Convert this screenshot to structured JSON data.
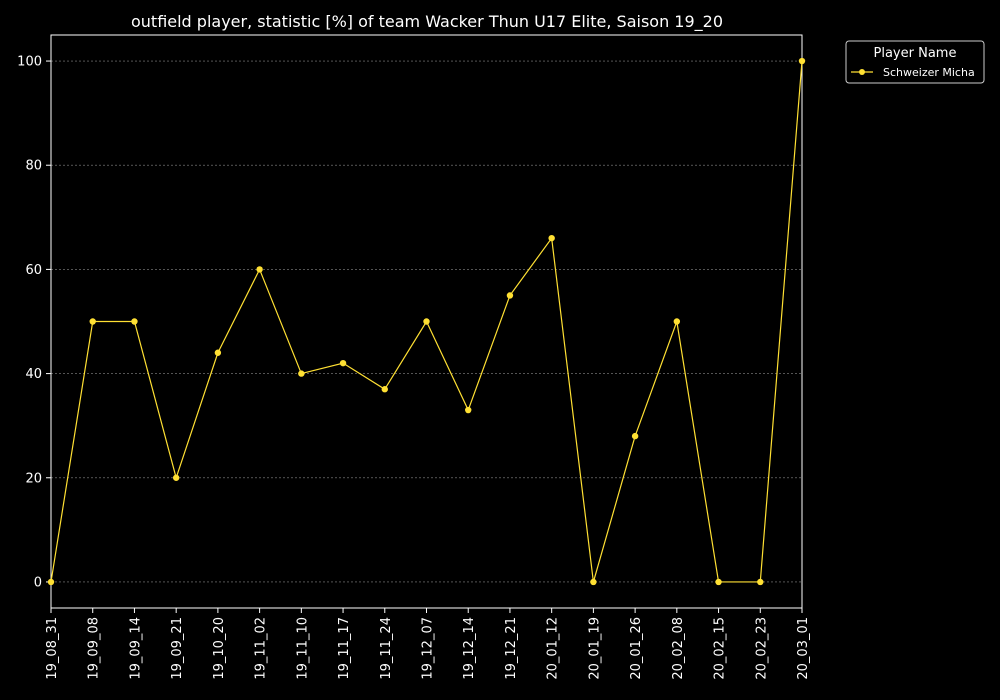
{
  "chart_data": {
    "type": "line",
    "title": "outfield player, statistic [%] of team Wacker Thun U17 Elite, Saison 19_20",
    "xlabel": "",
    "ylabel": "",
    "categories": [
      "19_08_31",
      "19_09_08",
      "19_09_14",
      "19_09_21",
      "19_10_20",
      "19_11_02",
      "19_11_10",
      "19_11_17",
      "19_11_24",
      "19_12_07",
      "19_12_14",
      "19_12_21",
      "20_01_12",
      "20_01_19",
      "20_01_26",
      "20_02_08",
      "20_02_15",
      "20_02_23",
      "20_03_01"
    ],
    "series": [
      {
        "name": "Schweizer Micha",
        "values": [
          0,
          50,
          50,
          20,
          44,
          60,
          40,
          42,
          37,
          50,
          33,
          55,
          66,
          0,
          28,
          50,
          0,
          0,
          100
        ],
        "color": "#ffe033"
      }
    ],
    "ylim": [
      -5,
      105
    ],
    "yticks": [
      0,
      20,
      40,
      60,
      80,
      100
    ],
    "grid": true,
    "legend": {
      "title": "Player Name",
      "placement": "outside-top-right"
    },
    "colors": {
      "background": "#000000",
      "text": "#ffffff",
      "grid": "#888888",
      "axis": "#ffffff"
    }
  }
}
